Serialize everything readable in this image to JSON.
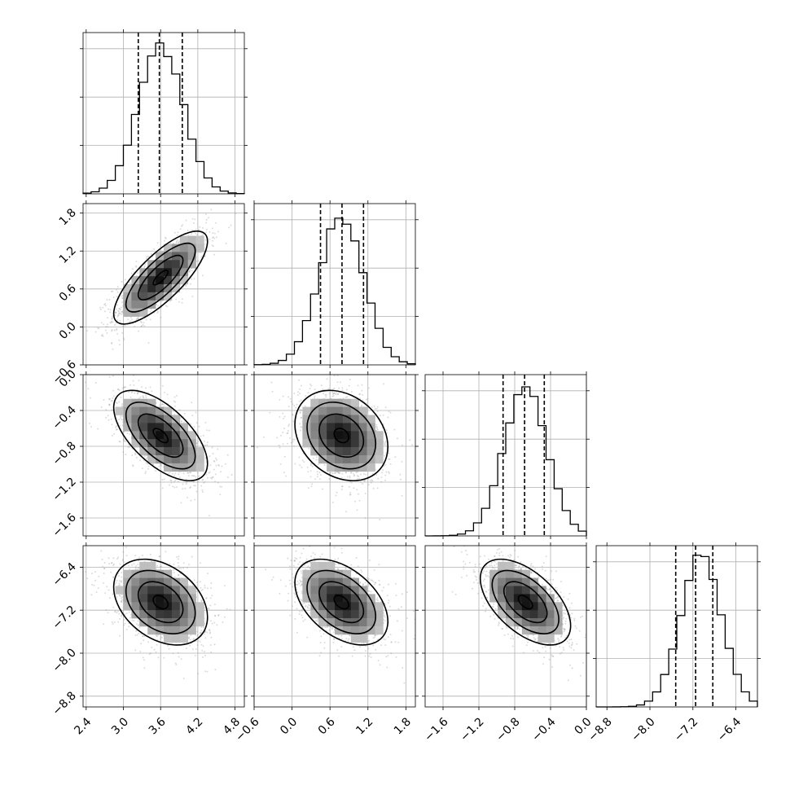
{
  "chart_data": {
    "type": "corner",
    "grid": true,
    "params": [
      {
        "mean": 3.6,
        "sd": 0.36,
        "range": [
          2.35,
          4.95
        ],
        "ticks": [
          2.4,
          3.0,
          3.6,
          4.2,
          4.8
        ],
        "tick_labels": [
          "2.4",
          "3.0",
          "3.6",
          "4.2",
          "4.8"
        ],
        "quantiles": [
          3.24,
          3.58,
          3.95
        ]
      },
      {
        "mean": 0.78,
        "sd": 0.35,
        "range": [
          -0.6,
          1.95
        ],
        "ticks": [
          -0.6,
          0.0,
          0.6,
          1.2,
          1.8
        ],
        "tick_labels": [
          "−0.6",
          "0.0",
          "0.6",
          "1.2",
          "1.8"
        ],
        "quantiles": [
          0.45,
          0.79,
          1.13
        ]
      },
      {
        "mean": -0.68,
        "sd": 0.24,
        "range": [
          -1.8,
          0.0
        ],
        "ticks": [
          -1.6,
          -1.2,
          -0.8,
          -0.4,
          0.0
        ],
        "tick_labels": [
          "−1.6",
          "−1.2",
          "−0.8",
          "−0.4",
          "0.0"
        ],
        "quantiles": [
          -0.93,
          -0.69,
          -0.47
        ]
      },
      {
        "mean": -7.05,
        "sd": 0.38,
        "range": [
          -9.0,
          -6.0
        ],
        "ticks": [
          -8.8,
          -8.0,
          -7.2,
          -6.4
        ],
        "tick_labels": [
          "−8.8",
          "−8.0",
          "−7.2",
          "−6.4"
        ],
        "quantiles": [
          -7.52,
          -7.15,
          -6.83
        ]
      }
    ],
    "correlations": [
      [
        1.0,
        0.78,
        -0.62,
        -0.35
      ],
      [
        0.78,
        1.0,
        -0.25,
        -0.45
      ],
      [
        -0.62,
        -0.25,
        1.0,
        -0.55
      ],
      [
        -0.35,
        -0.45,
        -0.55,
        1.0
      ]
    ]
  }
}
